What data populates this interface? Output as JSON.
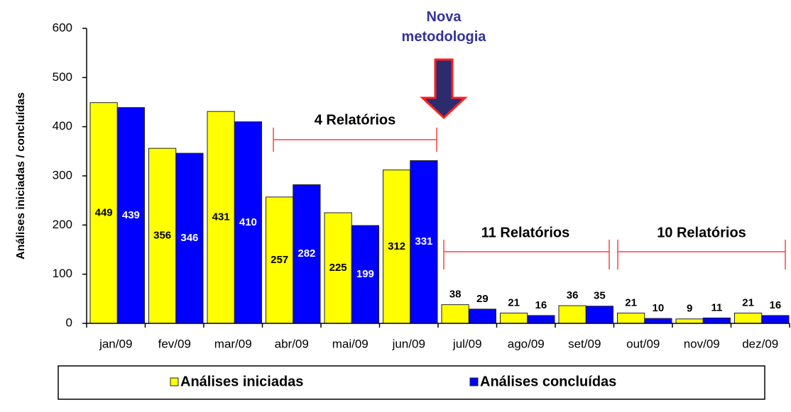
{
  "chart_data": {
    "type": "bar",
    "categories": [
      "jan/09",
      "fev/09",
      "mar/09",
      "abr/09",
      "mai/09",
      "jun/09",
      "jul/09",
      "ago/09",
      "set/09",
      "out/09",
      "nov/09",
      "dez/09"
    ],
    "series": [
      {
        "name": "Análises iniciadas",
        "color": "#ffff00",
        "values": [
          449,
          356,
          431,
          257,
          225,
          312,
          38,
          21,
          36,
          21,
          9,
          21
        ]
      },
      {
        "name": "Análises concluídas",
        "color": "#0000ff",
        "values": [
          439,
          346,
          410,
          282,
          199,
          331,
          29,
          16,
          35,
          10,
          11,
          16
        ]
      }
    ],
    "y_label": "Análises iniciadas / concluídas",
    "ylim": [
      0,
      600
    ],
    "yticks": [
      0,
      100,
      200,
      300,
      400,
      500,
      600
    ],
    "annotations": [
      "Nova metodologia",
      "4 Relatórios",
      "11 Relatórios",
      "10 Relatórios"
    ],
    "legend": "bottom"
  }
}
